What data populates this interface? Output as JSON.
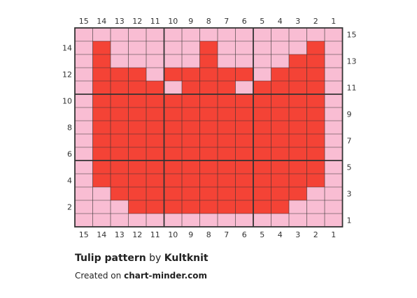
{
  "pattern": {
    "columns": 15,
    "rows": 15,
    "colors": {
      "background": "#f9bdd3",
      "main": "#f44336",
      "grid": "#333333"
    },
    "column_labels": [
      "15",
      "14",
      "13",
      "12",
      "11",
      "10",
      "9",
      "8",
      "7",
      "6",
      "5",
      "4",
      "3",
      "2",
      "1"
    ],
    "left_row_labels": [
      "14",
      "12",
      "10",
      "8",
      "6",
      "4",
      "2"
    ],
    "right_row_labels": [
      "15",
      "13",
      "11",
      "9",
      "7",
      "5",
      "3",
      "1"
    ],
    "grid_rows": [
      "000000000000000",
      "010000010000010",
      "010000010000110",
      "011101111101110",
      "011110111011110",
      "011111111111110",
      "011111111111110",
      "011111111111110",
      "011111111111110",
      "011111111111110",
      "011111111111110",
      "011111111111110",
      "001111111111100",
      "000111111111000",
      "000000000000000"
    ]
  },
  "footer": {
    "title": "Tulip pattern",
    "by": " by ",
    "author": "Kultknit",
    "created_prefix": "Created on ",
    "site": "chart-minder.com"
  }
}
